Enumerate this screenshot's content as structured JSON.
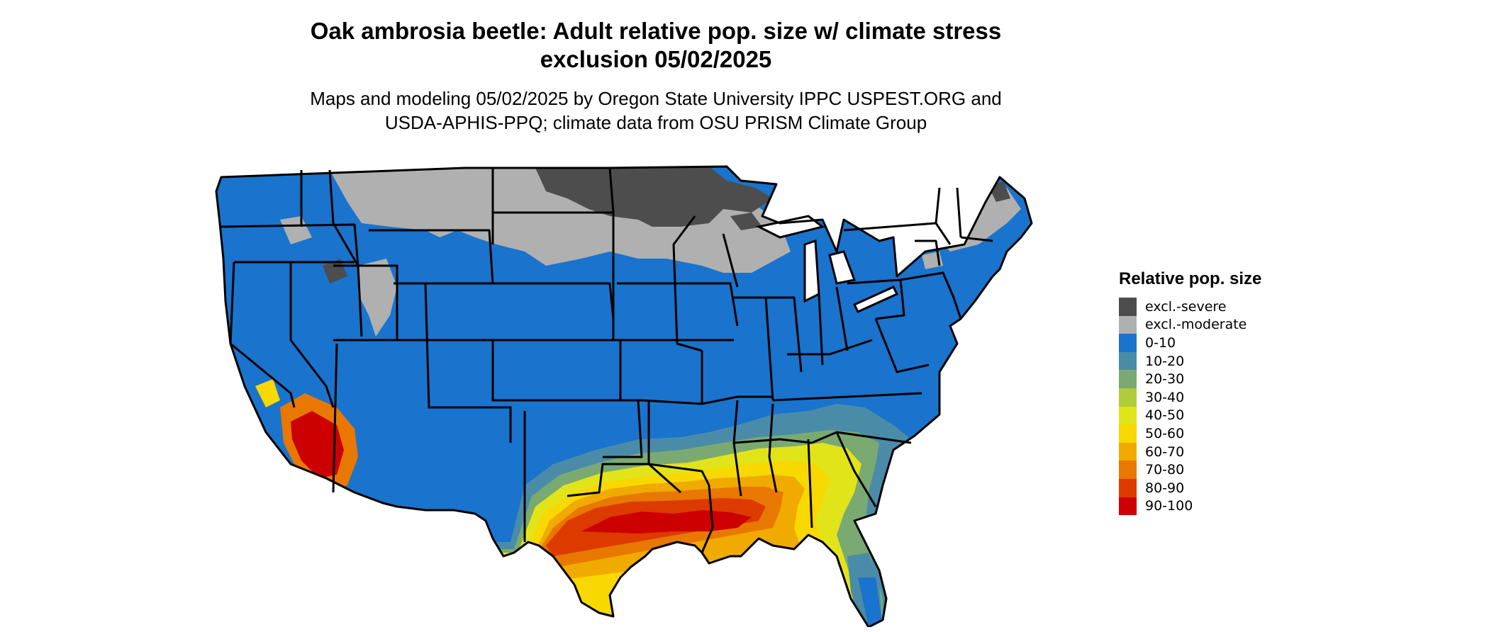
{
  "title_line1": "Oak ambrosia beetle: Adult relative pop. size w/ climate stress",
  "title_line2": "exclusion 05/02/2025",
  "subtitle_line1": "Maps and modeling 05/02/2025 by Oregon State University IPPC USPEST.ORG and",
  "subtitle_line2": "USDA-APHIS-PPQ; climate data from OSU PRISM Climate Group",
  "legend": {
    "title": "Relative pop. size",
    "items": [
      {
        "label": "excl.-severe",
        "color": "#4d4d4d"
      },
      {
        "label": "excl.-moderate",
        "color": "#b0b0b0"
      },
      {
        "label": "0-10",
        "color": "#1a73cc"
      },
      {
        "label": "10-20",
        "color": "#4a8ca8"
      },
      {
        "label": "20-30",
        "color": "#7aaa72"
      },
      {
        "label": "30-40",
        "color": "#b0cc3a"
      },
      {
        "label": "40-50",
        "color": "#e2e41a"
      },
      {
        "label": "50-60",
        "color": "#f7d800"
      },
      {
        "label": "60-70",
        "color": "#f0aa00"
      },
      {
        "label": "70-80",
        "color": "#e87800"
      },
      {
        "label": "80-90",
        "color": "#dd3a00"
      },
      {
        "label": "90-100",
        "color": "#cc0000"
      }
    ]
  }
}
